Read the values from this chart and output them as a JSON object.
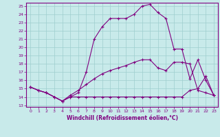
{
  "xlabel": "Windchill (Refroidissement éolien,°C)",
  "bg_color": "#c8eaea",
  "grid_color": "#9ecece",
  "line_color": "#800080",
  "x_ticks": [
    0,
    1,
    2,
    3,
    4,
    5,
    6,
    7,
    8,
    9,
    10,
    11,
    12,
    13,
    14,
    15,
    16,
    17,
    18,
    19,
    20,
    21,
    22,
    23
  ],
  "y_ticks": [
    13,
    14,
    15,
    16,
    17,
    18,
    19,
    20,
    21,
    22,
    23,
    24,
    25
  ],
  "ylim": [
    12.8,
    25.4
  ],
  "xlim": [
    -0.5,
    23.5
  ],
  "series1_x": [
    0,
    1,
    2,
    3,
    4,
    5,
    6,
    7,
    8,
    9,
    10,
    11,
    12,
    13,
    14,
    15,
    16,
    17,
    18,
    19,
    20,
    21,
    22,
    23
  ],
  "series1_y": [
    15.2,
    14.8,
    14.5,
    14.0,
    13.5,
    14.0,
    14.5,
    17.0,
    21.0,
    22.5,
    23.5,
    23.5,
    23.5,
    24.0,
    25.0,
    25.2,
    24.2,
    23.5,
    19.8,
    19.8,
    16.2,
    18.5,
    16.0,
    14.2
  ],
  "series2_x": [
    0,
    1,
    2,
    3,
    4,
    5,
    6,
    7,
    8,
    9,
    10,
    11,
    12,
    13,
    14,
    15,
    16,
    17,
    18,
    19,
    20,
    21,
    22,
    23
  ],
  "series2_y": [
    15.2,
    14.8,
    14.5,
    14.0,
    13.5,
    14.0,
    14.0,
    14.0,
    14.0,
    14.0,
    14.0,
    14.0,
    14.0,
    14.0,
    14.0,
    14.0,
    14.0,
    14.0,
    14.0,
    14.0,
    14.8,
    15.0,
    16.5,
    14.2
  ],
  "series3_x": [
    0,
    1,
    2,
    3,
    4,
    5,
    6,
    7,
    8,
    9,
    10,
    11,
    12,
    13,
    14,
    15,
    16,
    17,
    18,
    19,
    20,
    21,
    22,
    23
  ],
  "series3_y": [
    15.2,
    14.8,
    14.5,
    14.0,
    13.5,
    14.2,
    14.8,
    15.5,
    16.2,
    16.8,
    17.2,
    17.5,
    17.8,
    18.2,
    18.5,
    18.5,
    17.5,
    17.2,
    18.2,
    18.2,
    18.0,
    14.8,
    14.5,
    14.2
  ]
}
